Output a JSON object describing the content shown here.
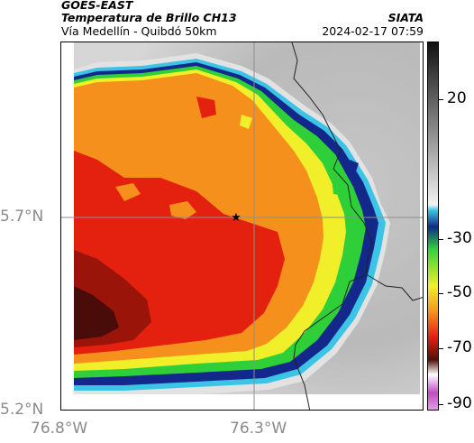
{
  "header": {
    "satellite": "GOES-EAST",
    "product": "Temperatura de Brillo CH13",
    "location": "Vía Medellín - Quibdó 50km",
    "organization": "SIATA",
    "datetime": "2024-02-17 07:59"
  },
  "axes": {
    "lat_labels": [
      "5.7°N",
      "5.2°N"
    ],
    "lon_labels": [
      "76.8°W",
      "76.3°W"
    ]
  },
  "colorbar": {
    "ticks": [
      "20",
      "-30",
      "-50",
      "-70",
      "-90"
    ],
    "tick_values": [
      20,
      -30,
      -50,
      -70,
      -90
    ],
    "range": [
      -95,
      40
    ]
  },
  "colors": {
    "gray_light": "#d8d8d8",
    "cyan": "#39c6e8",
    "navy": "#102a86",
    "green": "#2fd23a",
    "yellow": "#f0f02a",
    "orange": "#f7921e",
    "red": "#e61d10",
    "dark_red": "#520e0a",
    "magenta": "#c24ac4"
  },
  "map": {
    "marker": "star-icon"
  }
}
